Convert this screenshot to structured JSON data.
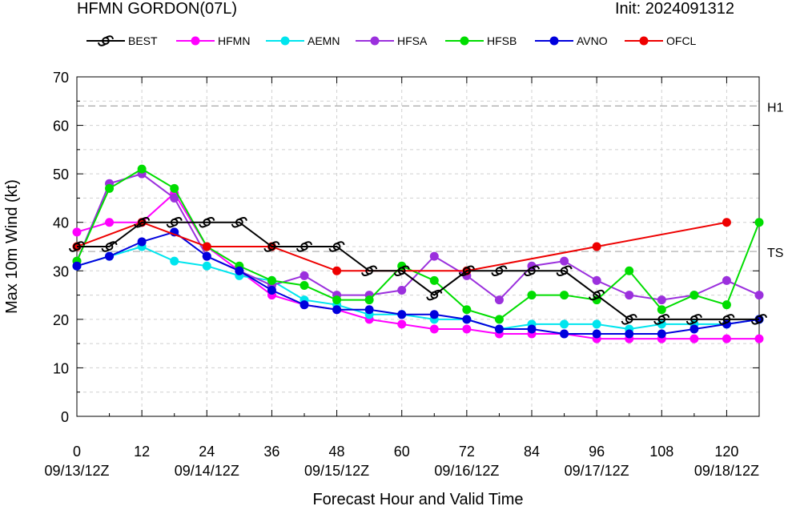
{
  "header": {
    "title": "HFMN GORDON(07L)",
    "init": "Init: 2024091312"
  },
  "chart_data": {
    "type": "line",
    "xlabel": "Forecast Hour and Valid Time",
    "ylabel": "Max 10m Wind (kt)",
    "xlim": [
      0,
      126
    ],
    "ylim": [
      0,
      70
    ],
    "xticks": [
      0,
      12,
      24,
      36,
      48,
      60,
      72,
      84,
      96,
      108,
      120
    ],
    "xtick_labels": [
      "0",
      "12",
      "24",
      "36",
      "48",
      "60",
      "72",
      "84",
      "96",
      "108",
      "120"
    ],
    "date_labels": [
      {
        "x": 0,
        "label": "09/13/12Z"
      },
      {
        "x": 24,
        "label": "09/14/12Z"
      },
      {
        "x": 48,
        "label": "09/15/12Z"
      },
      {
        "x": 72,
        "label": "09/16/12Z"
      },
      {
        "x": 96,
        "label": "09/17/12Z"
      },
      {
        "x": 120,
        "label": "09/18/12Z"
      }
    ],
    "yticks": [
      0,
      10,
      20,
      30,
      40,
      50,
      60,
      70
    ],
    "reference_lines": [
      {
        "y": 64,
        "label": "H1"
      },
      {
        "y": 34,
        "label": "TS"
      }
    ],
    "grid": true,
    "legend_position": "top",
    "series": [
      {
        "name": "BEST",
        "color": "#000000",
        "marker": "hurricane-symbol",
        "x": [
          0,
          6,
          12,
          18,
          24,
          30,
          36,
          42,
          48,
          54,
          60,
          66,
          72,
          78,
          84,
          90,
          96,
          102,
          108,
          114,
          120,
          126
        ],
        "y": [
          35,
          35,
          40,
          40,
          40,
          40,
          35,
          35,
          35,
          30,
          30,
          25,
          30,
          30,
          30,
          30,
          25,
          20,
          20,
          20,
          20,
          20
        ]
      },
      {
        "name": "HFMN",
        "color": "#ff00ff",
        "marker": "dot",
        "x": [
          0,
          6,
          12,
          18,
          24,
          30,
          36,
          42,
          48,
          54,
          60,
          66,
          72,
          78,
          84,
          90,
          96,
          102,
          108,
          114,
          120,
          126
        ],
        "y": [
          38,
          40,
          40,
          46,
          35,
          30,
          25,
          23,
          22,
          20,
          19,
          18,
          18,
          17,
          17,
          17,
          16,
          16,
          16,
          16,
          16,
          16
        ]
      },
      {
        "name": "AEMN",
        "color": "#00e5ee",
        "marker": "dot",
        "x": [
          0,
          6,
          12,
          18,
          24,
          30,
          36,
          42,
          48,
          54,
          60,
          66,
          72,
          78,
          84,
          90,
          96,
          102,
          108,
          114,
          120,
          126
        ],
        "y": [
          31,
          33,
          35,
          32,
          31,
          29,
          28,
          24,
          23,
          21,
          21,
          20,
          20,
          18,
          19,
          19,
          19,
          18,
          19,
          19,
          19,
          20
        ]
      },
      {
        "name": "HFSA",
        "color": "#9b30dd",
        "marker": "dot",
        "x": [
          0,
          6,
          12,
          18,
          24,
          30,
          36,
          42,
          48,
          54,
          60,
          66,
          72,
          78,
          84,
          90,
          96,
          102,
          108,
          114,
          120,
          126
        ],
        "y": [
          32,
          48,
          50,
          45,
          33,
          30,
          27,
          29,
          25,
          25,
          26,
          33,
          29,
          24,
          31,
          32,
          28,
          25,
          24,
          25,
          28,
          25
        ]
      },
      {
        "name": "HFSB",
        "color": "#00dd00",
        "marker": "dot",
        "x": [
          0,
          6,
          12,
          18,
          24,
          30,
          36,
          42,
          48,
          54,
          60,
          66,
          72,
          78,
          84,
          90,
          96,
          102,
          108,
          114,
          120,
          126
        ],
        "y": [
          32,
          47,
          51,
          47,
          35,
          31,
          28,
          27,
          24,
          24,
          31,
          28,
          22,
          20,
          25,
          25,
          24,
          30,
          22,
          25,
          23,
          40
        ]
      },
      {
        "name": "AVNO",
        "color": "#0000dd",
        "marker": "dot",
        "x": [
          0,
          6,
          12,
          18,
          24,
          30,
          36,
          42,
          48,
          54,
          60,
          66,
          72,
          78,
          84,
          90,
          96,
          102,
          108,
          114,
          120,
          126
        ],
        "y": [
          31,
          33,
          36,
          38,
          33,
          30,
          26,
          23,
          22,
          22,
          21,
          21,
          20,
          18,
          18,
          17,
          17,
          17,
          17,
          18,
          19,
          20
        ]
      },
      {
        "name": "OFCL",
        "color": "#ee0000",
        "marker": "dot",
        "x": [
          0,
          12,
          24,
          36,
          48,
          72,
          96,
          120
        ],
        "y": [
          35,
          40,
          35,
          35,
          30,
          30,
          35,
          40
        ]
      }
    ]
  }
}
